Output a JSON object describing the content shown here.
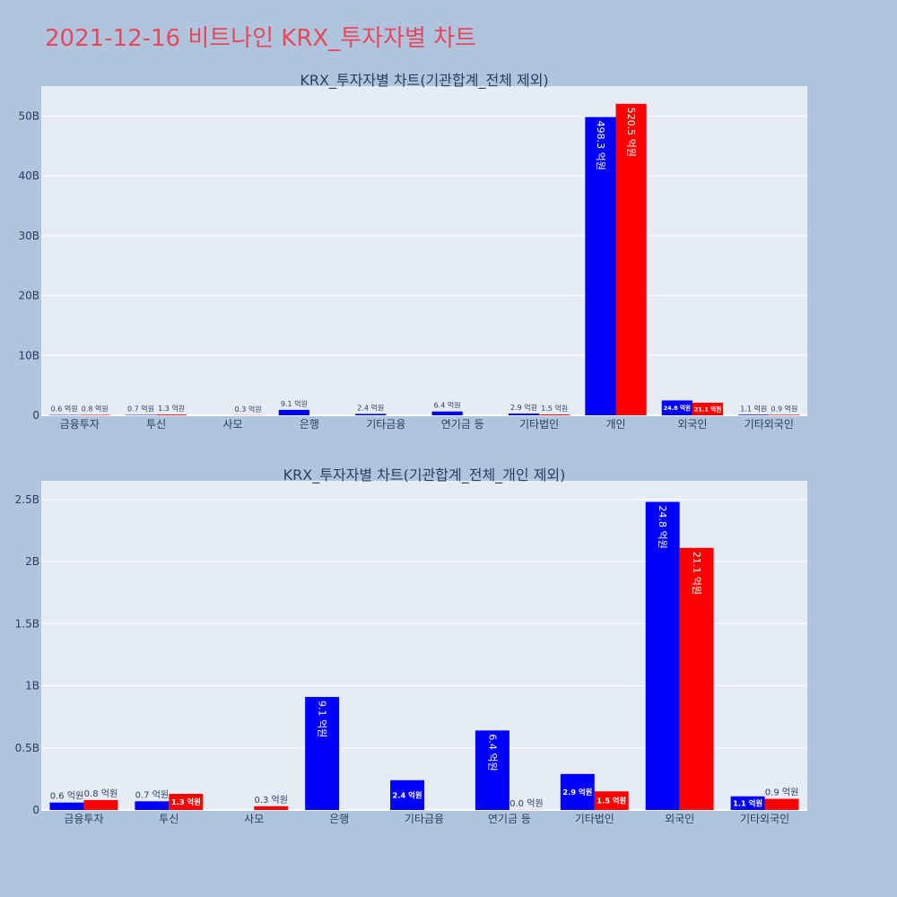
{
  "page": {
    "title": "2021-12-16 비트나인 KRX_투자자별 차트"
  },
  "colors": {
    "sell": "#0000ff",
    "buy": "#ff0000",
    "plot_bg": "#e5ecf6",
    "page_bg": "#b0c4de",
    "title": "#e8485c"
  },
  "chart_data": [
    {
      "type": "bar",
      "title": "KRX_투자자별 차트(기관합계_전체 제외)",
      "categories": [
        "금융투자",
        "투신",
        "사모",
        "은행",
        "기타금융",
        "연기금 등",
        "기타법인",
        "개인",
        "외국인",
        "기타외국인"
      ],
      "ylim": [
        0,
        55
      ],
      "yticks": [
        0,
        10,
        20,
        30,
        40,
        50
      ],
      "ytick_labels": [
        "0",
        "10B",
        "20B",
        "30B",
        "40B",
        "50B"
      ],
      "unit_scale": 1000000000,
      "series": [
        {
          "values": [
            0.06,
            0.07,
            0,
            0.91,
            0.24,
            0.64,
            0.29,
            49.83,
            2.48,
            0.11
          ],
          "labels": [
            "0.6 억원",
            "0.7 억원",
            "",
            "9.1 억원",
            "2.4 억원",
            "6.4 억원",
            "2.9 억원",
            "498.3 억원",
            "24.8 억원",
            "1.1 억원"
          ]
        },
        {
          "values": [
            0.08,
            0.13,
            0.03,
            0,
            0,
            0,
            0.15,
            52.05,
            2.11,
            0.09
          ],
          "labels": [
            "0.8 억원",
            "1.3 억원",
            "0.3 억원",
            "",
            "",
            "",
            "1.5 억원",
            "520.5 억원",
            "21.1 억원",
            "0.9 억원"
          ]
        }
      ],
      "grid": true,
      "legend": "none"
    },
    {
      "type": "bar",
      "title": "KRX_투자자별 차트(기관합계_전체_개인 제외)",
      "categories": [
        "금융투자",
        "투신",
        "사모",
        "은행",
        "기타금융",
        "연기금 등",
        "기타법인",
        "외국인",
        "기타외국인"
      ],
      "ylim": [
        0,
        2.65
      ],
      "yticks": [
        0,
        0.5,
        1,
        1.5,
        2,
        2.5
      ],
      "ytick_labels": [
        "0",
        "0.5B",
        "1B",
        "1.5B",
        "2B",
        "2.5B"
      ],
      "unit_scale": 1000000000,
      "series": [
        {
          "values": [
            0.06,
            0.07,
            0,
            0.91,
            0.24,
            0.64,
            0.29,
            2.48,
            0.11
          ],
          "labels": [
            "0.6 억원",
            "0.7 억원",
            "",
            "9.1 억원",
            "2.4 억원",
            "6.4 억원",
            "2.9 억원",
            "24.8 억원",
            "1.1 억원"
          ]
        },
        {
          "values": [
            0.08,
            0.13,
            0.03,
            0,
            0,
            0.001,
            0.15,
            2.11,
            0.09
          ],
          "labels": [
            "0.8 억원",
            "1.3 억원",
            "0.3 억원",
            "",
            "",
            "0.0 억원",
            "1.5 억원",
            "21.1 억원",
            "0.9 억원"
          ]
        }
      ],
      "grid": true,
      "legend": "none"
    }
  ]
}
